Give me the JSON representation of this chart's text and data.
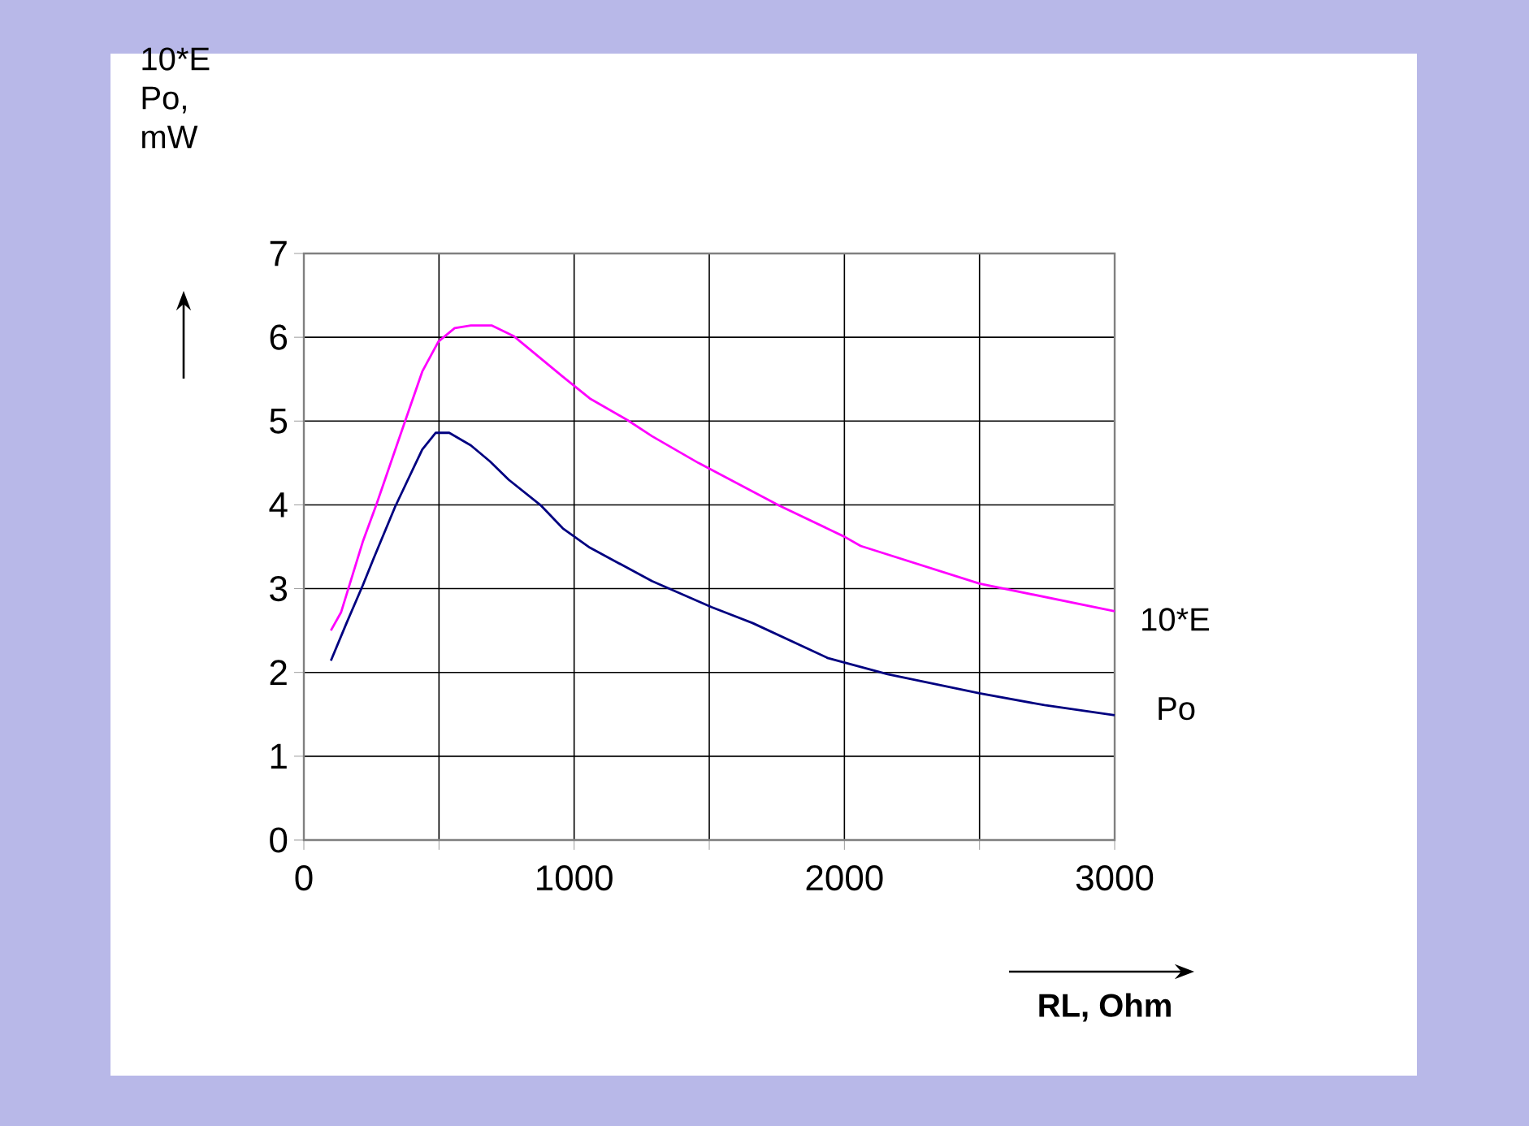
{
  "chart_data": {
    "type": "line",
    "xlabel": "RL, Ohm",
    "ylabel": "10*E Po, mW",
    "xlim": [
      0,
      3000
    ],
    "ylim": [
      0,
      7
    ],
    "xticks": [
      0,
      {
        "value": 500,
        "label": null
      },
      1000,
      {
        "value": 1500,
        "label": null
      },
      2000,
      {
        "value": 2500,
        "label": null
      },
      3000
    ],
    "yticks": [
      0,
      1,
      2,
      3,
      4,
      5,
      6,
      7
    ],
    "grid": true,
    "marker": "none",
    "line_style": "solid",
    "series": [
      {
        "name": "10*E",
        "color": "#ff00ff",
        "x": [
          100,
          138,
          218,
          268,
          348,
          438,
          498,
          558,
          618,
          696,
          778,
          958,
          1058,
          1198,
          1288,
          1460,
          1760,
          2000,
          2060,
          2500,
          3000
        ],
        "values": [
          2.5,
          2.72,
          3.56,
          4.0,
          4.75,
          5.59,
          5.95,
          6.11,
          6.14,
          6.14,
          6.01,
          5.53,
          5.27,
          5.01,
          4.82,
          4.5,
          3.99,
          3.62,
          3.51,
          3.06,
          2.73
        ]
      },
      {
        "name": "Po",
        "color": "#000080",
        "x": [
          100,
          158,
          218,
          258,
          338,
          438,
          488,
          538,
          618,
          688,
          758,
          878,
          958,
          1058,
          1288,
          1508,
          1660,
          1940,
          2160,
          2500,
          2740,
          3000
        ],
        "values": [
          2.14,
          2.59,
          3.04,
          3.36,
          3.98,
          4.66,
          4.86,
          4.86,
          4.71,
          4.52,
          4.3,
          3.99,
          3.72,
          3.49,
          3.09,
          2.78,
          2.59,
          2.17,
          1.98,
          1.75,
          1.61,
          1.49
        ]
      }
    ]
  }
}
